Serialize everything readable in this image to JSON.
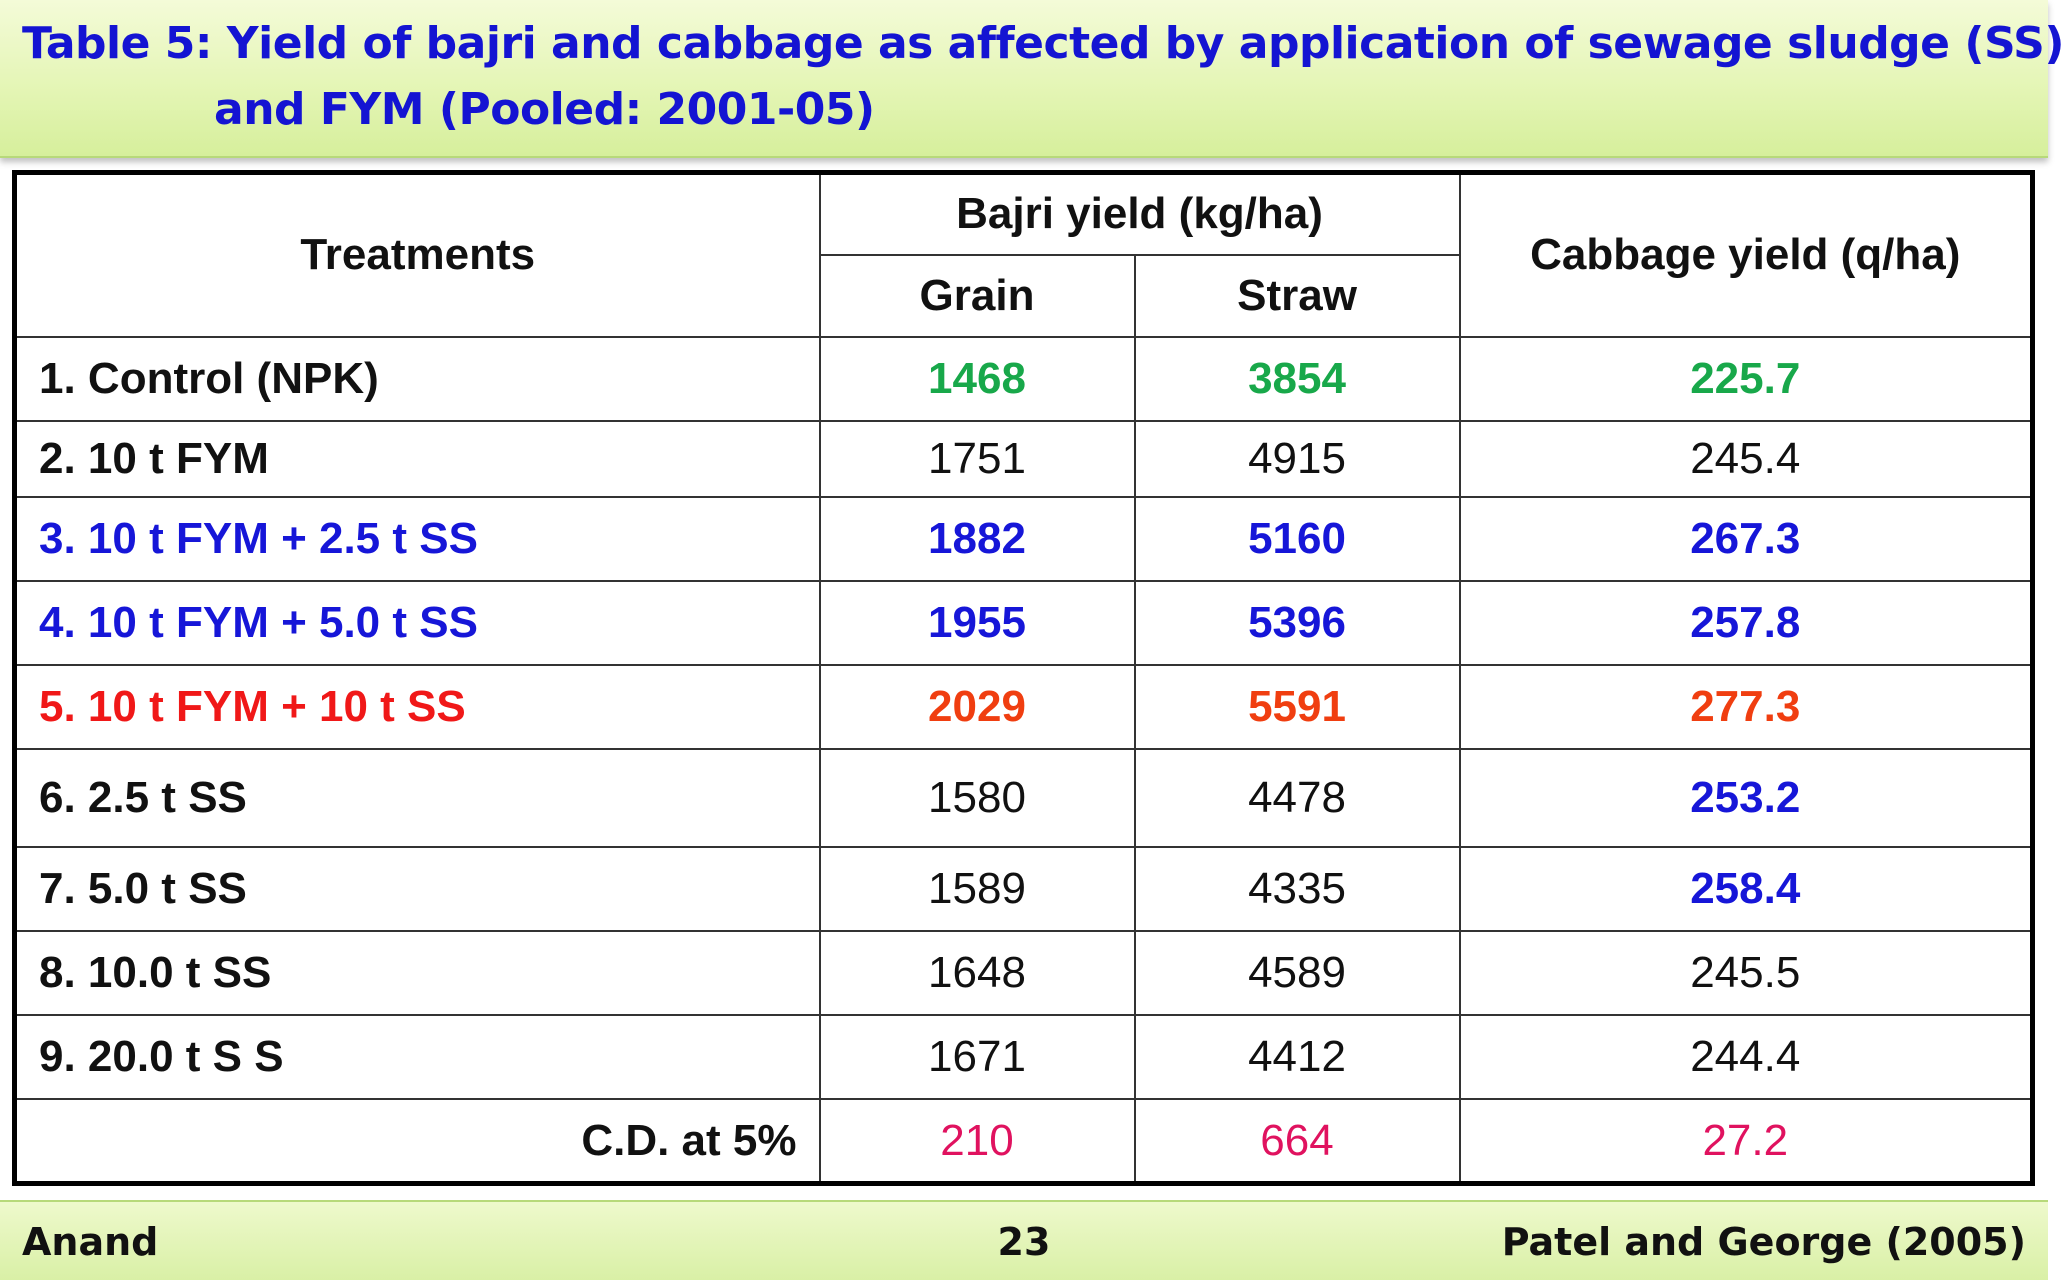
{
  "title": {
    "line1": "Table 5: Yield of bajri and cabbage as affected by application of sewage sludge (SS)",
    "line2": "and FYM (Pooled: 2001-05)"
  },
  "table": {
    "headers": {
      "treatments": "Treatments",
      "bajri": "Bajri yield (kg/ha)",
      "grain": "Grain",
      "straw": "Straw",
      "cabbage": "Cabbage yield (q/ha)"
    },
    "rows": [
      {
        "treatment": "1. Control (NPK)",
        "grain": "1468",
        "straw": "3854",
        "cabbage": "225.7"
      },
      {
        "treatment": "2. 10 t FYM",
        "grain": "1751",
        "straw": "4915",
        "cabbage": "245.4"
      },
      {
        "treatment": "3. 10 t FYM + 2.5 t SS",
        "grain": "1882",
        "straw": "5160",
        "cabbage": "267.3"
      },
      {
        "treatment": "4. 10 t FYM + 5.0 t SS",
        "grain": "1955",
        "straw": "5396",
        "cabbage": "257.8"
      },
      {
        "treatment": "5. 10 t FYM + 10 t SS",
        "grain": "2029",
        "straw": "5591",
        "cabbage": "277.3"
      },
      {
        "treatment": "6. 2.5 t SS",
        "grain": "1580",
        "straw": "4478",
        "cabbage": "253.2"
      },
      {
        "treatment": "7. 5.0 t SS",
        "grain": "1589",
        "straw": "4335",
        "cabbage": "258.4"
      },
      {
        "treatment": "8. 10.0 t SS",
        "grain": "1648",
        "straw": "4589",
        "cabbage": "245.5"
      },
      {
        "treatment": "9. 20.0 t S S",
        "grain": "1671",
        "straw": "4412",
        "cabbage": "244.4"
      }
    ],
    "cd": {
      "label": "C.D. at 5%",
      "grain": "210",
      "straw": "664",
      "cabbage": "27.2"
    }
  },
  "footer": {
    "left": "Anand",
    "page": "23",
    "right": "Patel and George (2005)"
  },
  "colors": {
    "title": "#1414d2",
    "green": "#18a84a",
    "blue": "#1616d8",
    "red": "#f01818",
    "orange": "#f03e10",
    "pink": "#e0125f",
    "footer_bg": "#d9f0a6"
  }
}
